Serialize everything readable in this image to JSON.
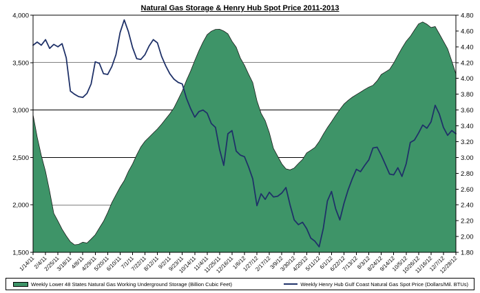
{
  "title": "Natural Gas Storage & Henry Hub Spot Price 2011-2013",
  "colors": {
    "storage_fill": "#3E9468",
    "storage_edge": "#1b1b1b",
    "price_line": "#1F3168",
    "axis": "#000000",
    "grid": "#000000",
    "background": "#FFFFFF"
  },
  "legend": {
    "items": [
      {
        "label": "Weekly Lower 48 States Natural Gas Working Underground Storage  (Billion Cubic Feet)",
        "swatch": "green-area-swatch"
      },
      {
        "label": "Weekly Henry Hub Gulf Coast Natural Gas Spot Price (Dollars/Mil. BTUs)",
        "swatch": "navy-line-swatch"
      }
    ]
  },
  "chart_data": {
    "type": "area+line dual-axis",
    "title": "Natural Gas Storage & Henry Hub Spot Price 2011-2013",
    "grid": "horizontal-only",
    "legend_position": "bottom",
    "x_label_every_n_points": 3,
    "x_labels": [
      "1/14/11",
      "2/4/11",
      "2/25/11",
      "3/18/11",
      "4/8/11",
      "4/29/11",
      "5/20/11",
      "6/10/11",
      "7/1/11",
      "7/22/11",
      "8/12/11",
      "9/2/11",
      "9/23/11",
      "10/14/11",
      "11/4/11",
      "11/25/11",
      "12/16/11",
      "1/6/12",
      "1/27/12",
      "2/17/12",
      "3/9/12",
      "3/30/12",
      "4/20/12",
      "5/11/12",
      "6/1/12",
      "6/22/12",
      "7/13/12",
      "8/3/12",
      "8/24/12",
      "9/14/12",
      "10/5/12",
      "10/26/12",
      "11/16/12",
      "12/7/12",
      "12/28/12"
    ],
    "left_axis": {
      "min": 1500,
      "max": 4000,
      "step": 500,
      "tick_labels_top_to_bottom": [
        "4,000",
        "3,500",
        "3,000",
        "2,500",
        "2,000",
        "1,500"
      ]
    },
    "right_axis": {
      "min": 1.8,
      "max": 4.8,
      "step": 0.2,
      "tick_labels_top_to_bottom": [
        "4.80",
        "4.60",
        "4.40",
        "4.20",
        "4.00",
        "3.80",
        "3.60",
        "3.40",
        "3.20",
        "3.00",
        "2.80",
        "2.60",
        "2.40",
        "2.20",
        "2.00",
        "1.80"
      ]
    },
    "series": [
      {
        "name": "Weekly Lower 48 States Natural Gas Working Underground Storage (Billion Cubic Feet)",
        "type": "area",
        "axis": "left",
        "values": [
          2950,
          2716,
          2520,
          2353,
          2144,
          1911,
          1830,
          1745,
          1674,
          1612,
          1579,
          1584,
          1607,
          1598,
          1640,
          1685,
          1757,
          1827,
          1919,
          2024,
          2107,
          2187,
          2256,
          2354,
          2432,
          2527,
          2611,
          2671,
          2714,
          2758,
          2801,
          2851,
          2906,
          2961,
          3025,
          3112,
          3201,
          3312,
          3409,
          3521,
          3624,
          3716,
          3794,
          3831,
          3850,
          3852,
          3833,
          3804,
          3725,
          3662,
          3548,
          3472,
          3377,
          3290,
          3098,
          2966,
          2888,
          2761,
          2595,
          2513,
          2433,
          2380,
          2369,
          2389,
          2437,
          2479,
          2548,
          2576,
          2606,
          2667,
          2744,
          2815,
          2877,
          2944,
          3006,
          3063,
          3102,
          3135,
          3163,
          3189,
          3217,
          3241,
          3261,
          3308,
          3374,
          3402,
          3429,
          3496,
          3576,
          3653,
          3725,
          3776,
          3843,
          3908,
          3929,
          3905,
          3870,
          3880,
          3804,
          3725,
          3645,
          3517,
          3380
        ]
      },
      {
        "name": "Weekly Henry Hub Gulf Coast Natural Gas Spot Price (Dollars/Mil. BTUs)",
        "type": "line",
        "axis": "right",
        "values": [
          4.42,
          4.46,
          4.42,
          4.49,
          4.38,
          4.43,
          4.4,
          4.44,
          4.26,
          3.84,
          3.8,
          3.77,
          3.76,
          3.81,
          3.93,
          4.21,
          4.19,
          4.06,
          4.05,
          4.15,
          4.3,
          4.58,
          4.74,
          4.59,
          4.39,
          4.25,
          4.24,
          4.3,
          4.41,
          4.49,
          4.45,
          4.28,
          4.16,
          4.06,
          3.99,
          3.95,
          3.93,
          3.75,
          3.62,
          3.51,
          3.58,
          3.6,
          3.56,
          3.43,
          3.38,
          3.1,
          2.9,
          3.3,
          3.34,
          3.08,
          3.03,
          3.01,
          2.88,
          2.73,
          2.39,
          2.54,
          2.47,
          2.56,
          2.5,
          2.51,
          2.55,
          2.62,
          2.4,
          2.21,
          2.15,
          2.18,
          2.1,
          1.98,
          1.94,
          1.87,
          2.1,
          2.45,
          2.57,
          2.35,
          2.21,
          2.42,
          2.59,
          2.73,
          2.85,
          2.82,
          2.9,
          2.97,
          3.12,
          3.13,
          3.03,
          2.91,
          2.79,
          2.78,
          2.87,
          2.76,
          2.92,
          3.19,
          3.22,
          3.31,
          3.41,
          3.37,
          3.45,
          3.66,
          3.55,
          3.38,
          3.28,
          3.34,
          3.3
        ]
      }
    ]
  }
}
